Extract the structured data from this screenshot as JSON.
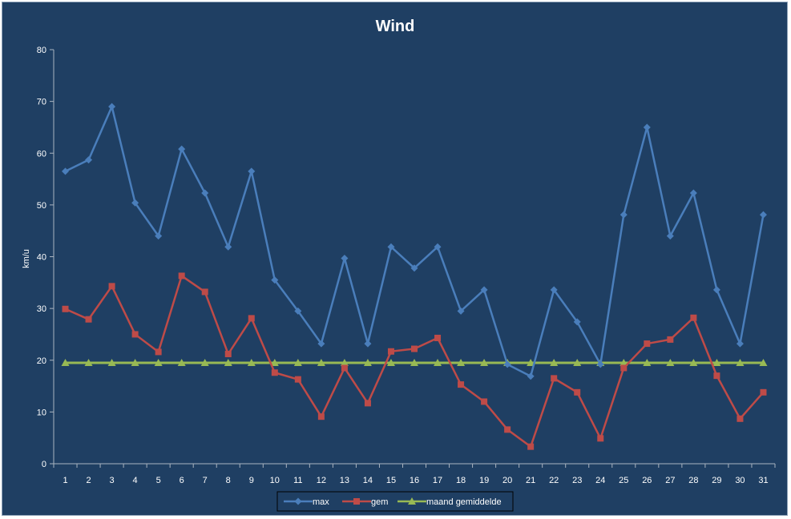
{
  "chart_data": {
    "type": "line",
    "title": "Wind",
    "xlabel": "",
    "ylabel": "km/u",
    "ylim": [
      0,
      80
    ],
    "yticks": [
      0,
      10,
      20,
      30,
      40,
      50,
      60,
      70,
      80
    ],
    "x": [
      "1",
      "2",
      "3",
      "4",
      "5",
      "6",
      "7",
      "8",
      "9",
      "10",
      "11",
      "12",
      "13",
      "14",
      "15",
      "16",
      "17",
      "18",
      "19",
      "20",
      "21",
      "22",
      "23",
      "24",
      "25",
      "26",
      "27",
      "28",
      "29",
      "30",
      "31"
    ],
    "grid": false,
    "legend": "bottom",
    "series": [
      {
        "name": "max",
        "color": "#4a7ebb",
        "marker": "diamond",
        "values": [
          56.5,
          58.7,
          69,
          50.4,
          44,
          60.8,
          52.3,
          41.9,
          56.5,
          35.5,
          29.5,
          23.2,
          39.7,
          23.2,
          41.9,
          37.8,
          41.9,
          29.5,
          33.6,
          19.2,
          16.9,
          33.6,
          27.4,
          19.2,
          48.1,
          65,
          44,
          52.3,
          33.6,
          23.2,
          48.1
        ]
      },
      {
        "name": "gem",
        "color": "#be4b48",
        "marker": "square",
        "values": [
          29.9,
          27.9,
          34.3,
          25,
          21.6,
          36.3,
          33.2,
          21.2,
          28.1,
          17.6,
          16.3,
          9.1,
          18.5,
          11.7,
          21.7,
          22.2,
          24.3,
          15.3,
          12,
          6.6,
          3.3,
          16.5,
          13.8,
          4.9,
          18.5,
          23.2,
          24,
          28.2,
          17,
          8.7,
          13.8
        ]
      },
      {
        "name": "maand gemiddelde",
        "color": "#98b954",
        "marker": "triangle",
        "values": [
          19.5,
          19.5,
          19.5,
          19.5,
          19.5,
          19.5,
          19.5,
          19.5,
          19.5,
          19.5,
          19.5,
          19.5,
          19.5,
          19.5,
          19.5,
          19.5,
          19.5,
          19.5,
          19.5,
          19.5,
          19.5,
          19.5,
          19.5,
          19.5,
          19.5,
          19.5,
          19.5,
          19.5,
          19.5,
          19.5,
          19.5
        ]
      }
    ]
  }
}
